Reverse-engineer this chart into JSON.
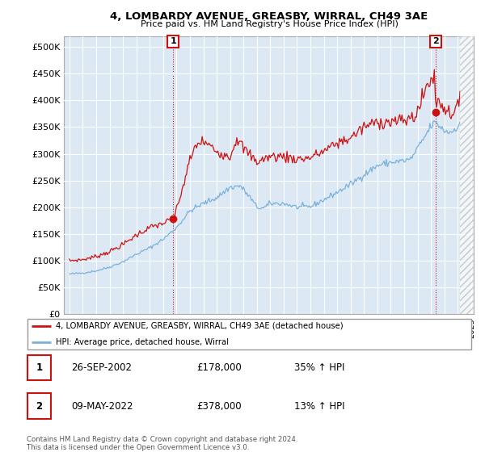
{
  "title": "4, LOMBARDY AVENUE, GREASBY, WIRRAL, CH49 3AE",
  "subtitle": "Price paid vs. HM Land Registry's House Price Index (HPI)",
  "bg_color": "#ffffff",
  "chart_bg_color": "#dce9f5",
  "grid_color": "#ffffff",
  "hpi_color": "#7ab0d9",
  "price_color": "#cc1111",
  "ylim": [
    0,
    520000
  ],
  "yticks": [
    0,
    50000,
    100000,
    150000,
    200000,
    250000,
    300000,
    350000,
    400000,
    450000,
    500000
  ],
  "ytick_labels": [
    "£0",
    "£50K",
    "£100K",
    "£150K",
    "£200K",
    "£250K",
    "£300K",
    "£350K",
    "£400K",
    "£450K",
    "£500K"
  ],
  "sale1_date": 2002.74,
  "sale1_price": 178000,
  "sale1_label": "1",
  "sale2_date": 2022.36,
  "sale2_price": 378000,
  "sale2_label": "2",
  "legend_line1": "4, LOMBARDY AVENUE, GREASBY, WIRRAL, CH49 3AE (detached house)",
  "legend_line2": "HPI: Average price, detached house, Wirral",
  "table_row1": [
    "1",
    "26-SEP-2002",
    "£178,000",
    "35% ↑ HPI"
  ],
  "table_row2": [
    "2",
    "09-MAY-2022",
    "£378,000",
    "13% ↑ HPI"
  ],
  "footer": "Contains HM Land Registry data © Crown copyright and database right 2024.\nThis data is licensed under the Open Government Licence v3.0.",
  "xlim_left": 1994.6,
  "xlim_right": 2025.2,
  "hatch_start": 2024.17
}
